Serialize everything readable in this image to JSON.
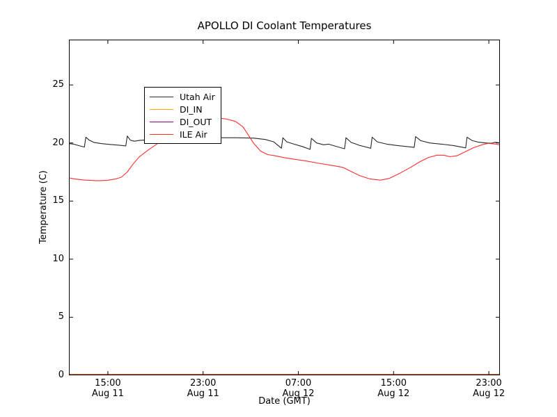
{
  "figure": {
    "background": "#ffffff",
    "axis_color": "#000000"
  },
  "chart_data": {
    "type": "line",
    "title": "APOLLO DI Coolant Temperatures",
    "xlabel": "Date (GMT)",
    "ylabel": "Temperature (C)",
    "xlim": [
      0,
      36.2
    ],
    "ylim": [
      0,
      28.9
    ],
    "grid": false,
    "legend_position": "upper left",
    "xticks": [
      {
        "pos": 3.27,
        "line1": "15:00",
        "line2": "Aug 11"
      },
      {
        "pos": 11.27,
        "line1": "23:00",
        "line2": "Aug 11"
      },
      {
        "pos": 19.27,
        "line1": "07:00",
        "line2": "Aug 12"
      },
      {
        "pos": 27.27,
        "line1": "15:00",
        "line2": "Aug 12"
      },
      {
        "pos": 35.27,
        "line1": "23:00",
        "line2": "Aug 12"
      }
    ],
    "yticks": [
      0,
      5,
      10,
      15,
      20,
      25
    ],
    "series": [
      {
        "name": "Utah Air",
        "color": "#262626",
        "points": [
          [
            0,
            19.95
          ],
          [
            0.4,
            19.9
          ],
          [
            0.9,
            19.75
          ],
          [
            1.3,
            19.65
          ],
          [
            1.42,
            20.5
          ],
          [
            1.7,
            20.25
          ],
          [
            2.1,
            20.05
          ],
          [
            2.7,
            19.95
          ],
          [
            3.5,
            19.87
          ],
          [
            4.3,
            19.8
          ],
          [
            4.78,
            19.75
          ],
          [
            4.9,
            20.6
          ],
          [
            5.15,
            20.25
          ],
          [
            5.5,
            20.15
          ],
          [
            5.9,
            20.22
          ],
          [
            7.0,
            20.3
          ],
          [
            8.5,
            20.38
          ],
          [
            10.0,
            20.42
          ],
          [
            12.0,
            20.45
          ],
          [
            14.0,
            20.45
          ],
          [
            15.5,
            20.42
          ],
          [
            16.5,
            20.3
          ],
          [
            17.2,
            20.1
          ],
          [
            17.85,
            19.55
          ],
          [
            17.97,
            20.45
          ],
          [
            18.3,
            20.1
          ],
          [
            18.9,
            19.9
          ],
          [
            19.6,
            19.7
          ],
          [
            20.25,
            19.45
          ],
          [
            20.37,
            20.4
          ],
          [
            20.8,
            20.0
          ],
          [
            21.4,
            19.85
          ],
          [
            21.8,
            19.9
          ],
          [
            22.3,
            19.75
          ],
          [
            23.15,
            19.5
          ],
          [
            23.27,
            20.45
          ],
          [
            23.7,
            20.05
          ],
          [
            24.4,
            19.8
          ],
          [
            25.35,
            19.55
          ],
          [
            25.47,
            20.5
          ],
          [
            25.9,
            20.1
          ],
          [
            26.7,
            19.9
          ],
          [
            27.6,
            19.78
          ],
          [
            28.5,
            19.68
          ],
          [
            29.0,
            19.62
          ],
          [
            29.12,
            20.55
          ],
          [
            29.55,
            20.2
          ],
          [
            30.3,
            20.0
          ],
          [
            31.3,
            19.9
          ],
          [
            32.3,
            19.78
          ],
          [
            33.32,
            19.58
          ],
          [
            33.44,
            20.5
          ],
          [
            33.85,
            20.22
          ],
          [
            34.35,
            20.08
          ],
          [
            35.0,
            20.0
          ],
          [
            35.5,
            19.98
          ],
          [
            35.8,
            20.06
          ],
          [
            36.2,
            20.0
          ]
        ]
      },
      {
        "name": "DI_IN",
        "color": "#ffa500",
        "points": [
          [
            0,
            0
          ],
          [
            36.2,
            0
          ]
        ]
      },
      {
        "name": "DI_OUT",
        "color": "#800080",
        "points": [
          [
            0,
            0
          ],
          [
            36.2,
            0
          ]
        ]
      },
      {
        "name": "ILE Air",
        "color": "#ff2d2d",
        "points": [
          [
            0,
            17.0
          ],
          [
            0.5,
            16.9
          ],
          [
            1.2,
            16.82
          ],
          [
            2.4,
            16.75
          ],
          [
            3.2,
            16.78
          ],
          [
            3.9,
            16.9
          ],
          [
            4.4,
            17.05
          ],
          [
            4.9,
            17.5
          ],
          [
            5.4,
            18.2
          ],
          [
            5.9,
            18.8
          ],
          [
            6.6,
            19.35
          ],
          [
            7.3,
            19.85
          ],
          [
            7.9,
            20.3
          ],
          [
            8.8,
            21.0
          ],
          [
            9.6,
            21.5
          ],
          [
            10.3,
            21.75
          ],
          [
            11.0,
            21.95
          ],
          [
            11.8,
            22.1
          ],
          [
            12.6,
            22.15
          ],
          [
            13.3,
            22.05
          ],
          [
            14.0,
            21.85
          ],
          [
            14.6,
            21.4
          ],
          [
            15.0,
            20.8
          ],
          [
            15.5,
            20.0
          ],
          [
            16.1,
            19.3
          ],
          [
            16.7,
            19.0
          ],
          [
            17.3,
            18.9
          ],
          [
            18.0,
            18.75
          ],
          [
            18.9,
            18.6
          ],
          [
            19.9,
            18.45
          ],
          [
            21.0,
            18.25
          ],
          [
            22.2,
            18.05
          ],
          [
            23.0,
            17.9
          ],
          [
            23.6,
            17.6
          ],
          [
            24.4,
            17.2
          ],
          [
            25.3,
            16.9
          ],
          [
            26.2,
            16.8
          ],
          [
            26.9,
            16.95
          ],
          [
            27.8,
            17.4
          ],
          [
            28.7,
            17.9
          ],
          [
            29.5,
            18.4
          ],
          [
            30.2,
            18.75
          ],
          [
            30.9,
            18.95
          ],
          [
            31.5,
            18.95
          ],
          [
            32.0,
            18.82
          ],
          [
            32.6,
            18.9
          ],
          [
            33.3,
            19.25
          ],
          [
            34.0,
            19.6
          ],
          [
            34.7,
            19.85
          ],
          [
            35.2,
            19.97
          ],
          [
            35.7,
            19.92
          ],
          [
            36.2,
            19.85
          ]
        ]
      }
    ]
  }
}
